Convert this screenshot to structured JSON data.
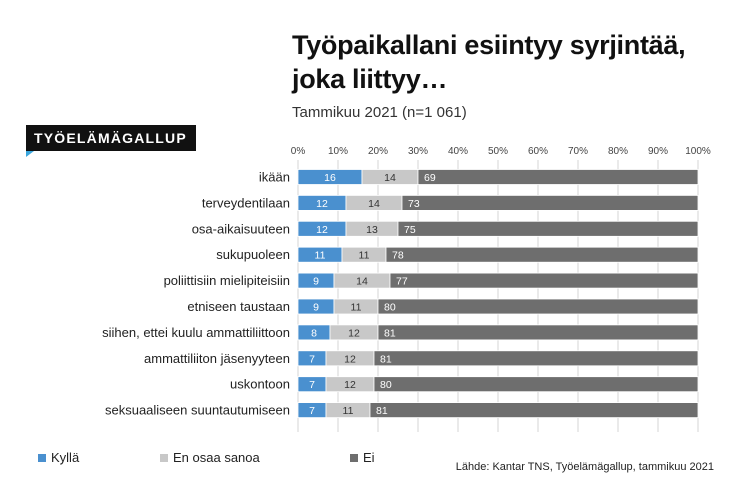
{
  "title": "Työpaikallani esiintyy syrjintää, joka liittyy…",
  "subtitle": "Tammikuu 2021 (n=1 061)",
  "brand": "TYÖELÄMÄGALLUP",
  "source": "Lähde: Kantar TNS, Työelämägallup, tammikuu 2021",
  "colors": {
    "kylla": "#4a90cf",
    "eos": "#c8c8c8",
    "ei": "#6e6e6e"
  },
  "chart_data": {
    "type": "bar",
    "orientation": "horizontal",
    "stacked": true,
    "xlim": [
      0,
      100
    ],
    "x_ticks": [
      "0%",
      "10%",
      "20%",
      "30%",
      "40%",
      "50%",
      "60%",
      "70%",
      "80%",
      "90%",
      "100%"
    ],
    "categories": [
      "ikään",
      "terveydentilaan",
      "osa-aikaisuuteen",
      "sukupuoleen",
      "poliittisiin mielipiteisiin",
      "etniseen taustaan",
      "siihen, ettei kuulu ammattiliittoon",
      "ammattiliiton jäsenyyteen",
      "uskontoon",
      "seksuaaliseen suuntautumiseen"
    ],
    "series": [
      {
        "name": "Kyllä",
        "values": [
          16,
          12,
          12,
          11,
          9,
          9,
          8,
          7,
          7,
          7
        ]
      },
      {
        "name": "En osaa sanoa",
        "values": [
          14,
          14,
          13,
          11,
          14,
          11,
          12,
          12,
          12,
          11
        ]
      },
      {
        "name": "Ei",
        "values": [
          69,
          73,
          75,
          78,
          77,
          80,
          81,
          81,
          80,
          81
        ]
      }
    ],
    "legend_position": "bottom-left",
    "grid": true
  }
}
